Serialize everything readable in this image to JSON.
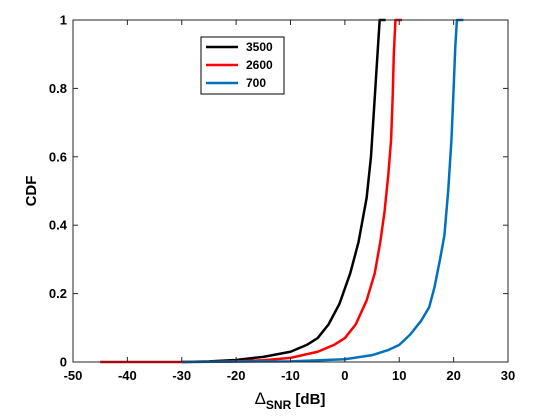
{
  "chart_data": {
    "type": "line",
    "xlabel": {
      "delta": "Δ",
      "sub": "SNR",
      "unit": " [dB]"
    },
    "ylabel": "CDF",
    "xlim": [
      -50,
      30
    ],
    "ylim": [
      0,
      1
    ],
    "xticks": [
      -50,
      -40,
      -30,
      -20,
      -10,
      0,
      10,
      20,
      30
    ],
    "yticks": [
      0,
      0.2,
      0.4,
      0.6,
      0.8,
      1
    ],
    "ytick_labels": [
      "0",
      "0.2",
      "0.4",
      "0.6",
      "0.8",
      "1"
    ],
    "grid": false,
    "legend_position": "top-center",
    "series": [
      {
        "name": "3500",
        "color": "#000000",
        "points": [
          [
            -30,
            0
          ],
          [
            -25,
            0.002
          ],
          [
            -20,
            0.006
          ],
          [
            -15,
            0.015
          ],
          [
            -10,
            0.03
          ],
          [
            -7,
            0.05
          ],
          [
            -5,
            0.07
          ],
          [
            -3,
            0.11
          ],
          [
            -1,
            0.17
          ],
          [
            1,
            0.26
          ],
          [
            2.5,
            0.35
          ],
          [
            4,
            0.48
          ],
          [
            4.8,
            0.6
          ],
          [
            5.2,
            0.7
          ],
          [
            5.6,
            0.8
          ],
          [
            6.0,
            0.9
          ],
          [
            6.4,
            1.0
          ],
          [
            7.5,
            1.0
          ]
        ]
      },
      {
        "name": "2600",
        "color": "#ff0000",
        "points": [
          [
            -45,
            0
          ],
          [
            -30,
            0
          ],
          [
            -20,
            0.002
          ],
          [
            -15,
            0.005
          ],
          [
            -10,
            0.012
          ],
          [
            -5,
            0.03
          ],
          [
            -2,
            0.05
          ],
          [
            0,
            0.07
          ],
          [
            2,
            0.11
          ],
          [
            4,
            0.18
          ],
          [
            5.5,
            0.26
          ],
          [
            6.5,
            0.35
          ],
          [
            7.3,
            0.44
          ],
          [
            8.0,
            0.55
          ],
          [
            8.5,
            0.65
          ],
          [
            8.8,
            0.78
          ],
          [
            9.0,
            0.9
          ],
          [
            9.3,
            1.0
          ],
          [
            10.5,
            1.0
          ]
        ]
      },
      {
        "name": "700",
        "color": "#0072bd",
        "points": [
          [
            -30,
            0
          ],
          [
            -20,
            0.001
          ],
          [
            -10,
            0.002
          ],
          [
            0,
            0.008
          ],
          [
            5,
            0.02
          ],
          [
            8,
            0.035
          ],
          [
            10,
            0.05
          ],
          [
            12,
            0.08
          ],
          [
            14,
            0.12
          ],
          [
            15.5,
            0.16
          ],
          [
            16.5,
            0.22
          ],
          [
            17.5,
            0.3
          ],
          [
            18.3,
            0.37
          ],
          [
            19,
            0.5
          ],
          [
            19.6,
            0.65
          ],
          [
            20.0,
            0.8
          ],
          [
            20.3,
            0.92
          ],
          [
            20.6,
            1.0
          ],
          [
            21.8,
            1.0
          ]
        ]
      }
    ]
  }
}
